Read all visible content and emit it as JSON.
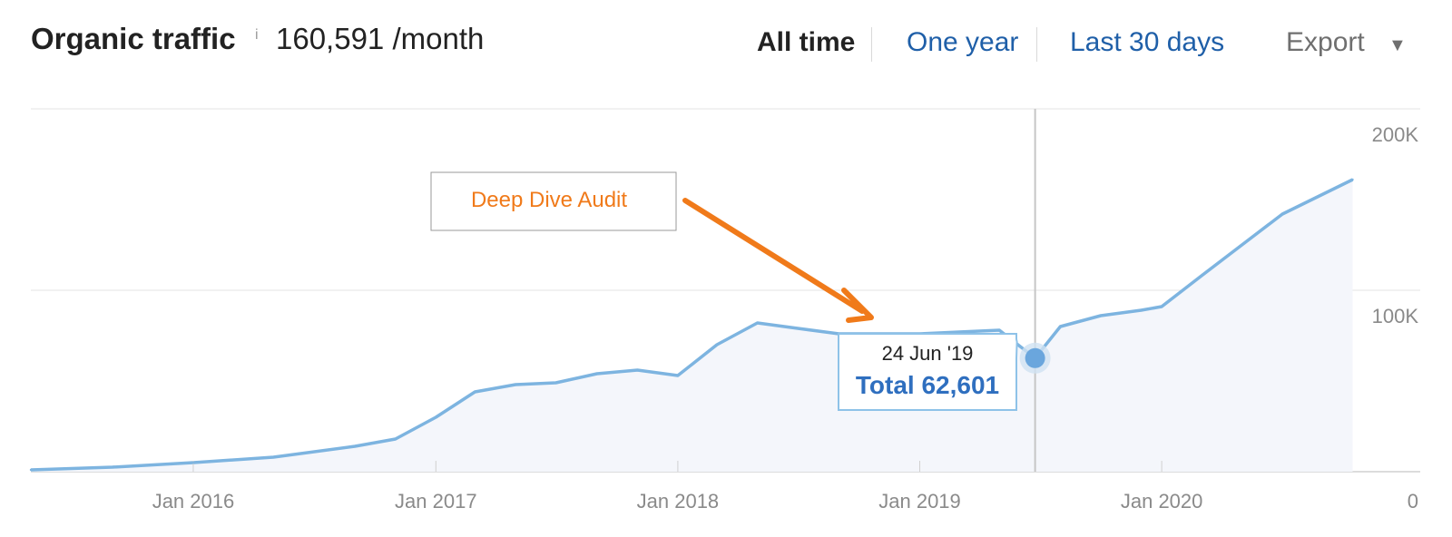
{
  "header": {
    "title": "Organic traffic",
    "info_icon": "i",
    "metric": "160,591 /month",
    "ranges": [
      "All time",
      "One year",
      "Last 30 days"
    ],
    "active_range": "All time",
    "export_label": "Export",
    "export_icon": "caret-down-icon"
  },
  "colors": {
    "line": "#7db4e0",
    "area": "#f4f6fb",
    "accent_blue": "#2f6fbf",
    "annotation": "#f07a1a",
    "grid": "#e3e3e3"
  },
  "annotation": {
    "label": "Deep Dive Audit"
  },
  "tooltip": {
    "date": "24 Jun '19",
    "total": "Total 62,601"
  },
  "chart_data": {
    "type": "area",
    "x_ticks": [
      "Jan 2016",
      "Jan 2017",
      "Jan 2018",
      "Jan 2019",
      "Jan 2020"
    ],
    "y_ticks": [
      "200K",
      "100K",
      "0"
    ],
    "ylim": [
      0,
      200000
    ],
    "grid": true,
    "series": [
      {
        "x": [
          "2015-05-01",
          "2015-09-01",
          "2016-01-01",
          "2016-05-01",
          "2016-09-01",
          "2016-11-01",
          "2017-01-01",
          "2017-03-01",
          "2017-05-01",
          "2017-07-01",
          "2017-09-01",
          "2017-11-01",
          "2018-01-01",
          "2018-03-01",
          "2018-05-01",
          "2018-07-01",
          "2018-09-01",
          "2018-11-01",
          "2019-01-01",
          "2019-03-01",
          "2019-05-01",
          "2019-06-24",
          "2019-08-01",
          "2019-10-01",
          "2019-12-01",
          "2020-01-01",
          "2020-03-01",
          "2020-05-01",
          "2020-07-01",
          "2020-10-15"
        ],
        "values": [
          1000,
          2500,
          5000,
          8000,
          14000,
          18000,
          30000,
          44000,
          48000,
          49000,
          54000,
          56000,
          53000,
          70000,
          82000,
          79000,
          76000,
          76000,
          76000,
          77000,
          78000,
          62601,
          80000,
          86000,
          89000,
          91000,
          108000,
          125000,
          142000,
          161000
        ]
      }
    ]
  }
}
